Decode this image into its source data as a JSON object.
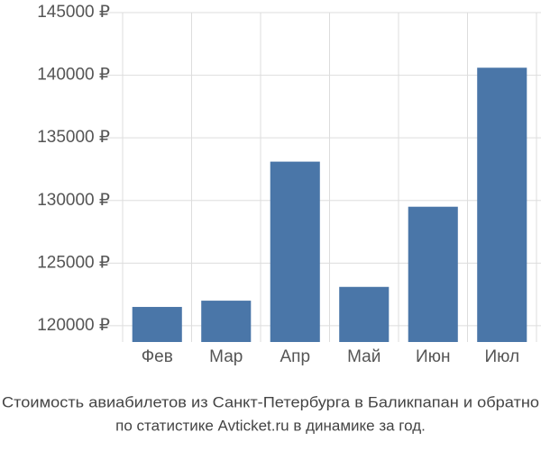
{
  "chart_data": {
    "type": "bar",
    "title": [
      "Стоимость авиабилетов из Санкт-Петербурга в Баликпапан и обратно",
      "по статистике Avticket.ru в динамике за год."
    ],
    "categories": [
      "Фев",
      "Мар",
      "Апр",
      "Май",
      "Июн",
      "Июл"
    ],
    "values": [
      121500,
      122000,
      133100,
      123100,
      129500,
      140600
    ],
    "color": "#4a76a8",
    "ylim": [
      118700,
      145000
    ],
    "yticks": [
      {
        "value": 120000,
        "label": "120000 ₽"
      },
      {
        "value": 125000,
        "label": "125000 ₽"
      },
      {
        "value": 130000,
        "label": "130000 ₽"
      },
      {
        "value": 135000,
        "label": "135000 ₽"
      },
      {
        "value": 140000,
        "label": "140000 ₽"
      },
      {
        "value": 145000,
        "label": "145000 ₽"
      }
    ],
    "grid": true
  }
}
